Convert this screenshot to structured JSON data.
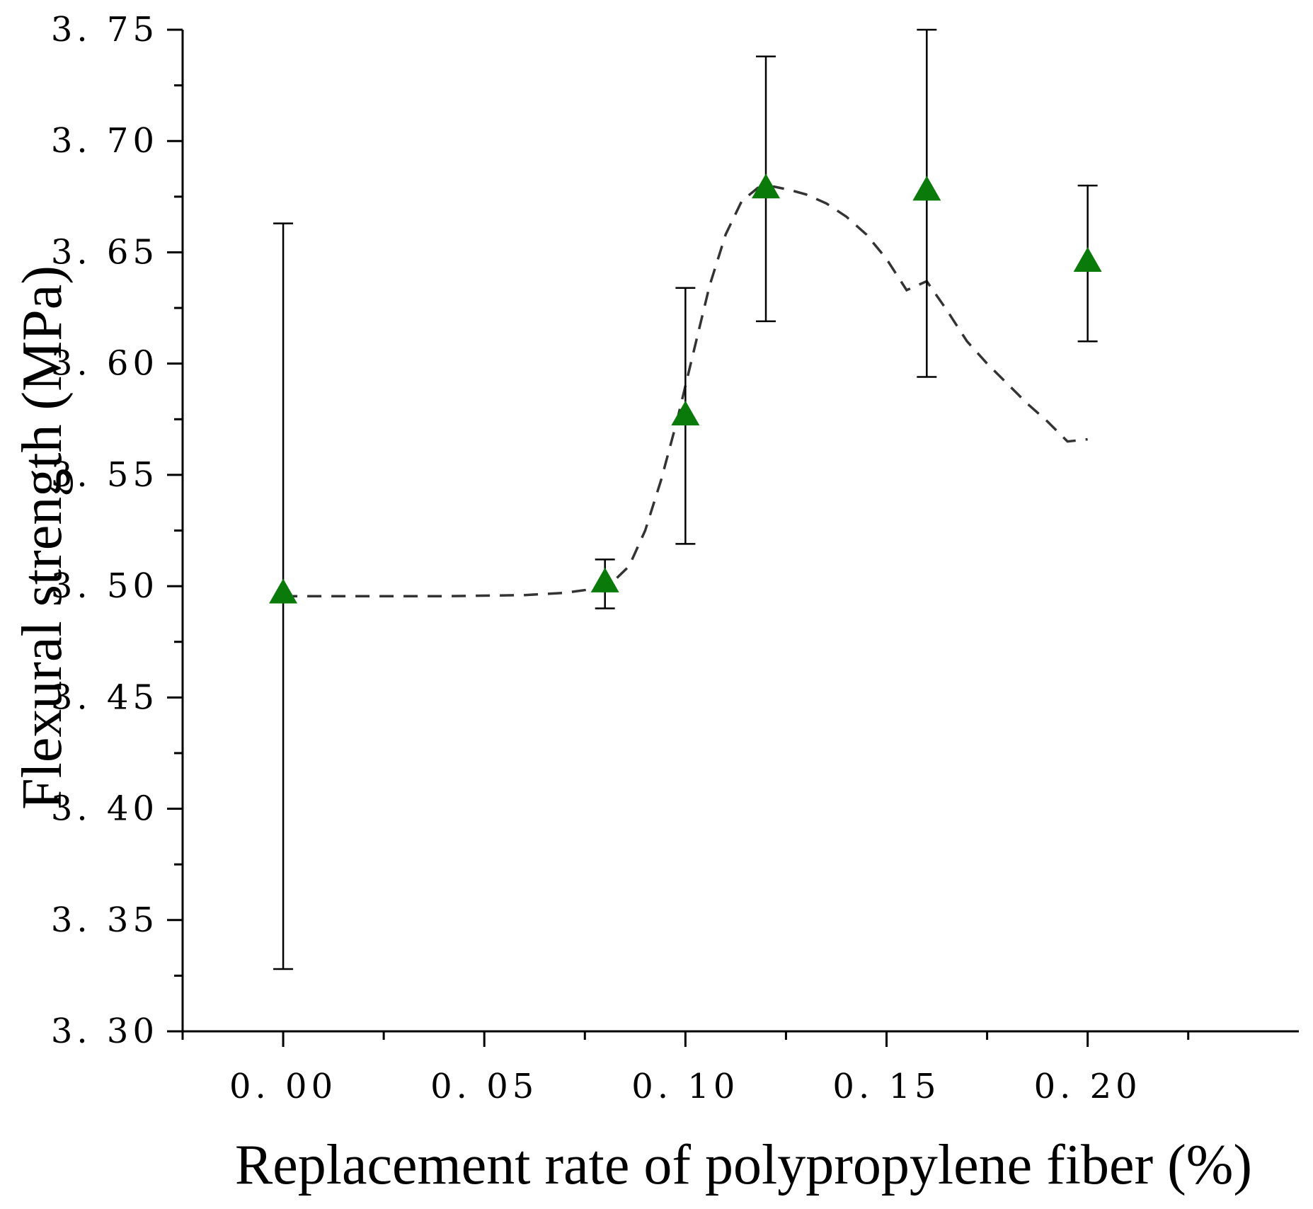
{
  "chart_data": {
    "type": "scatter",
    "title": "",
    "xlabel": "Replacement rate of polypropylene fiber (%)",
    "ylabel": "Flexural strength (MPa)",
    "xlim": [
      -0.025,
      0.2525
    ],
    "ylim": [
      3.3,
      3.75
    ],
    "x_ticks": [
      0.0,
      0.05,
      0.1,
      0.15,
      0.2
    ],
    "x_tick_labels": [
      "0. 00",
      "0. 05",
      "0. 10",
      "0. 15",
      "0. 20"
    ],
    "y_ticks": [
      3.3,
      3.35,
      3.4,
      3.45,
      3.5,
      3.55,
      3.6,
      3.65,
      3.7,
      3.75
    ],
    "y_tick_labels": [
      "3. 30",
      "3. 35",
      "3. 40",
      "3. 45",
      "3. 50",
      "3. 55",
      "3. 60",
      "3. 65",
      "3. 70",
      "3. 75"
    ],
    "grid": false,
    "marker_color": "#0a7a0a",
    "fit_color": "#333333",
    "series": [
      {
        "name": "Flexural strength",
        "marker": "triangle",
        "points": [
          {
            "x": 0.0,
            "y": 3.497,
            "y_low": 3.328,
            "y_high": 3.663
          },
          {
            "x": 0.08,
            "y": 3.502,
            "y_low": 3.49,
            "y_high": 3.512
          },
          {
            "x": 0.1,
            "y": 3.577,
            "y_low": 3.519,
            "y_high": 3.634
          },
          {
            "x": 0.12,
            "y": 3.679,
            "y_low": 3.619,
            "y_high": 3.738
          },
          {
            "x": 0.16,
            "y": 3.678,
            "y_low": 3.594,
            "y_high": 3.75
          },
          {
            "x": 0.2,
            "y": 3.646,
            "y_low": 3.61,
            "y_high": 3.68
          }
        ]
      }
    ],
    "fit_curve": {
      "name": "Fitted curve",
      "style": "dashed",
      "x": [
        0.0,
        0.02,
        0.04,
        0.06,
        0.07,
        0.078,
        0.082,
        0.086,
        0.09,
        0.094,
        0.098,
        0.102,
        0.106,
        0.11,
        0.114,
        0.118,
        0.122,
        0.126,
        0.13,
        0.135,
        0.14,
        0.145,
        0.15,
        0.155,
        0.16,
        0.165,
        0.17,
        0.175,
        0.18,
        0.185,
        0.19,
        0.195,
        0.2
      ],
      "y": [
        3.4955,
        3.4955,
        3.4955,
        3.496,
        3.497,
        3.499,
        3.502,
        3.509,
        3.525,
        3.548,
        3.575,
        3.605,
        3.635,
        3.658,
        3.673,
        3.679,
        3.6795,
        3.678,
        3.676,
        3.672,
        3.666,
        3.658,
        3.647,
        3.633,
        3.637,
        3.624,
        3.61,
        3.6,
        3.591,
        3.582,
        3.574,
        3.565,
        3.566
      ]
    }
  }
}
